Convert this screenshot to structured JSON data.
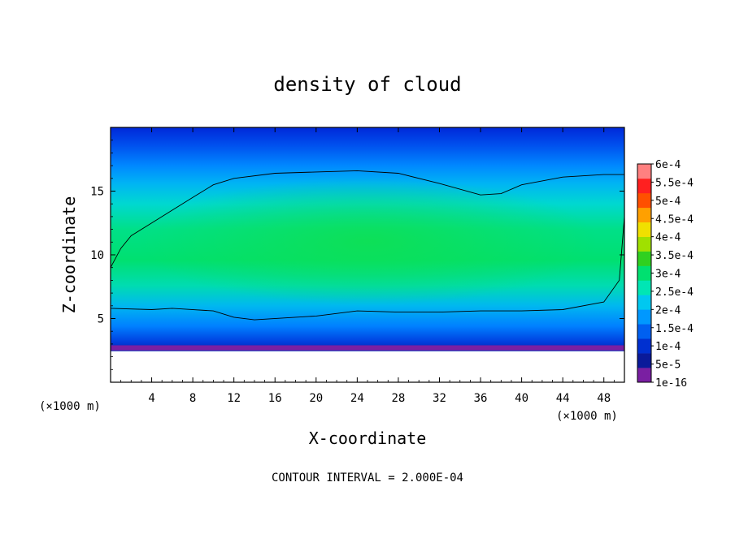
{
  "chart_data": {
    "type": "heatmap",
    "title": "density of cloud",
    "xlabel": "X-coordinate",
    "ylabel": "Z-coordinate",
    "x_unit": "(×1000 m)",
    "y_unit": "(×1000 m)",
    "xlim": [
      0,
      50
    ],
    "ylim": [
      0,
      20
    ],
    "x_ticks": [
      "4",
      "8",
      "12",
      "16",
      "20",
      "24",
      "28",
      "32",
      "36",
      "40",
      "44",
      "48"
    ],
    "y_ticks": [
      "5",
      "10",
      "15"
    ],
    "colorbar": {
      "labels": [
        "1e-16",
        "5e-5",
        "1e-4",
        "1.5e-4",
        "2e-4",
        "2.5e-4",
        "3e-4",
        "3.5e-4",
        "4e-4",
        "4.5e-4",
        "5e-4",
        "5.5e-4",
        "6e-4"
      ],
      "colors": [
        "#7a1fa2",
        "#0a1a9a",
        "#0030d0",
        "#0060f0",
        "#0098ff",
        "#00c8f0",
        "#00e6b4",
        "#00e070",
        "#30d020",
        "#a0e000",
        "#f0e000",
        "#ffa000",
        "#ff5000",
        "#ff2020",
        "#ff8080"
      ]
    },
    "footer_note": "CONTOUR INTERVAL = 2.000E-04",
    "cloud_top_contour_km": [
      [
        0,
        9
      ],
      [
        1,
        10.5
      ],
      [
        2,
        11.5
      ],
      [
        4,
        12.5
      ],
      [
        6,
        13.5
      ],
      [
        8,
        14.5
      ],
      [
        10,
        15.5
      ],
      [
        12,
        16
      ],
      [
        16,
        16.4
      ],
      [
        20,
        16.5
      ],
      [
        24,
        16.6
      ],
      [
        28,
        16.4
      ],
      [
        32,
        15.6
      ],
      [
        36,
        14.7
      ],
      [
        38,
        14.8
      ],
      [
        40,
        15.5
      ],
      [
        44,
        16.1
      ],
      [
        48,
        16.3
      ],
      [
        50,
        16.3
      ]
    ],
    "cloud_base_contour_km": [
      [
        0,
        5.8
      ],
      [
        4,
        5.7
      ],
      [
        6,
        5.8
      ],
      [
        10,
        5.6
      ],
      [
        12,
        5.1
      ],
      [
        14,
        4.9
      ],
      [
        18,
        5.1
      ],
      [
        20,
        5.2
      ],
      [
        24,
        5.6
      ],
      [
        28,
        5.5
      ],
      [
        32,
        5.5
      ],
      [
        36,
        5.6
      ],
      [
        40,
        5.6
      ],
      [
        44,
        5.7
      ],
      [
        48,
        6.3
      ],
      [
        49.5,
        8
      ],
      [
        50,
        13
      ]
    ],
    "surface_km": 2.5
  }
}
